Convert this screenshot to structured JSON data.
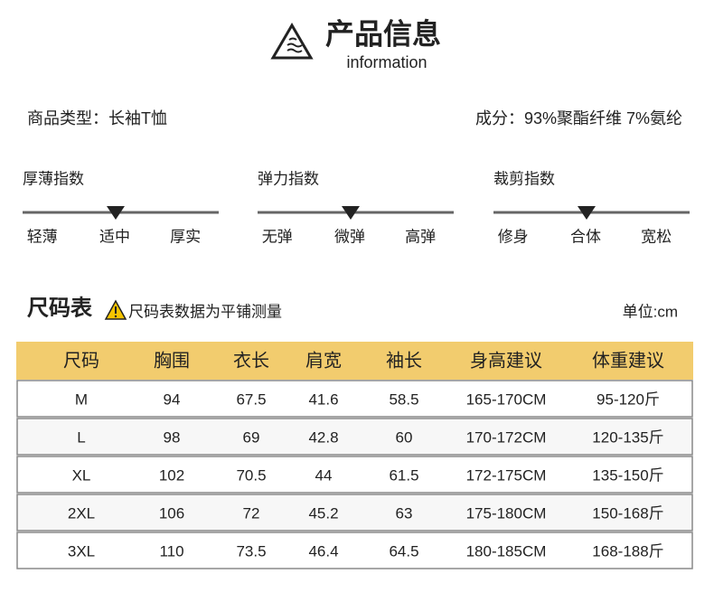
{
  "header": {
    "title": "产品信息",
    "subtitle": "information"
  },
  "product": {
    "type": "商品类型：长袖T恤",
    "material": "成分：93%聚酯纤维 7%氨纶"
  },
  "scales": [
    {
      "label": "厚薄指数",
      "options": [
        "轻薄",
        "适中",
        "厚实"
      ],
      "selected": 1
    },
    {
      "label": "弹力指数",
      "options": [
        "无弹",
        "微弹",
        "高弹"
      ],
      "selected": 1
    },
    {
      "label": "裁剪指数",
      "options": [
        "修身",
        "合体",
        "宽松"
      ],
      "selected": 1
    }
  ],
  "size_chart": {
    "title": "尺码表",
    "note": "尺码表数据为平铺测量",
    "unit": "单位:cm"
  },
  "table": {
    "columns": [
      "尺码",
      "胸围",
      "衣长",
      "肩宽",
      "袖长",
      "身高建议",
      "体重建议"
    ],
    "rows": [
      [
        "M",
        94,
        67.5,
        41.6,
        58.5,
        "165-170CM",
        "95-120斤"
      ],
      [
        "L",
        98,
        69,
        42.8,
        60,
        "170-172CM",
        "120-135斤"
      ],
      [
        "XL",
        102,
        70.5,
        44,
        61.5,
        "172-175CM",
        "135-150斤"
      ],
      [
        "2XL",
        106,
        72,
        45.2,
        63,
        "175-180CM",
        "150-168斤"
      ],
      [
        "3XL",
        110,
        73.5,
        46.4,
        64.5,
        "180-185CM",
        "168-188斤"
      ]
    ]
  }
}
